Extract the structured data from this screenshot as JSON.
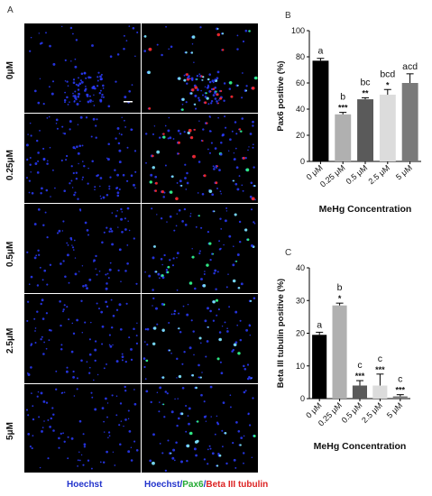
{
  "panels": {
    "a": "A",
    "b": "B",
    "c": "C"
  },
  "microscopy": {
    "row_labels": [
      "0μM",
      "0.25μM",
      "0.5μM",
      "2.5μM",
      "5μM"
    ],
    "column_caption_left": "Hoechst",
    "column_caption_right_parts": [
      {
        "text": "Hoechst",
        "color": "#2233cc"
      },
      {
        "text": "/",
        "color": "#2233cc"
      },
      {
        "text": "Pax6",
        "color": "#22aa33"
      },
      {
        "text": "/",
        "color": "#2233cc"
      },
      {
        "text": "Beta III tubulin",
        "color": "#dd2222"
      }
    ],
    "colors": {
      "background": "#000000",
      "hoechst": "#2b3cff",
      "pax6": "#33ff88",
      "tubulin": "#ff2a2a",
      "cyan": "#7fe9ff"
    }
  },
  "chart_data": [
    {
      "type": "bar",
      "panel": "B",
      "categories": [
        "0 μM",
        "0.25 μM",
        "0.5 μM",
        "2.5 μM",
        "5 μM"
      ],
      "values": [
        77,
        36,
        47.5,
        51,
        60
      ],
      "errors": [
        1.8,
        1.5,
        1.2,
        4,
        7
      ],
      "colors": [
        "#000000",
        "#b0b0b0",
        "#5a5a5a",
        "#dcdcdc",
        "#7a7a7a"
      ],
      "letters": [
        "a",
        "b",
        "bc",
        "bcd",
        "acd"
      ],
      "stars": [
        "",
        "***",
        "**",
        "*",
        ""
      ],
      "xlabel": "MeHg Concentration",
      "ylabel": "Pax6 positive (%)",
      "ylim": [
        0,
        100
      ],
      "yticks": [
        0,
        20,
        40,
        60,
        80,
        100
      ]
    },
    {
      "type": "bar",
      "panel": "C",
      "categories": [
        "0 μM",
        "0.25 μM",
        "0.5 μM",
        "2.5 μM",
        "5 μM"
      ],
      "values": [
        19.5,
        28.5,
        4,
        4,
        0.7
      ],
      "errors": [
        0.8,
        0.7,
        1.5,
        3.5,
        0.5
      ],
      "colors": [
        "#000000",
        "#b0b0b0",
        "#5a5a5a",
        "#dcdcdc",
        "#7a7a7a"
      ],
      "letters": [
        "a",
        "b",
        "c",
        "c",
        "c"
      ],
      "stars": [
        "",
        "*",
        "***",
        "***",
        "***"
      ],
      "xlabel": "MeHg Concentration",
      "ylabel": "Beta III tubulin  positive (%)",
      "ylim": [
        0,
        40
      ],
      "yticks": [
        0,
        10,
        20,
        30,
        40
      ]
    }
  ]
}
